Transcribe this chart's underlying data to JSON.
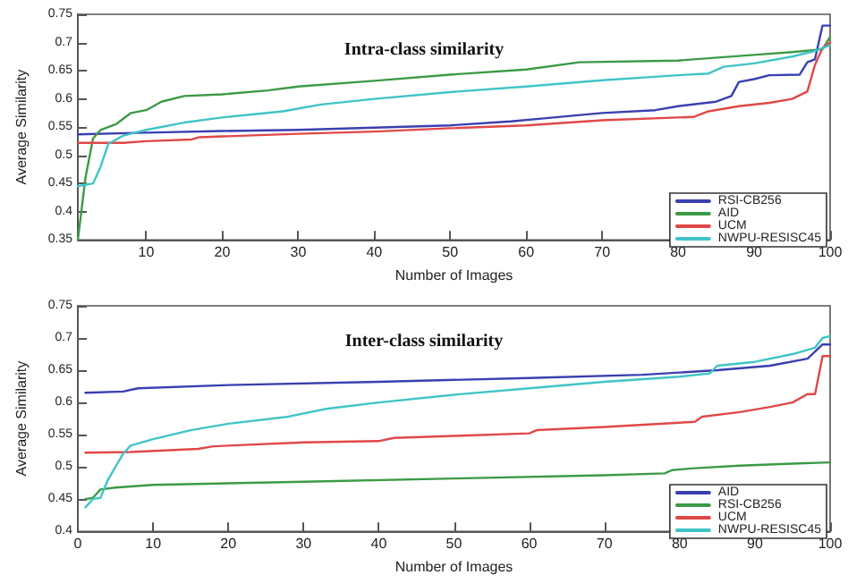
{
  "chart_data": [
    {
      "type": "line",
      "title": "Intra-class similarity",
      "xlabel": "Number of Images",
      "ylabel": "Average Similarity",
      "xlim": [
        1,
        100
      ],
      "xticks": [
        10,
        20,
        30,
        40,
        50,
        60,
        70,
        80,
        90,
        100
      ],
      "ylim": [
        0.35,
        0.75
      ],
      "yticks": [
        0.35,
        0.4,
        0.45,
        0.5,
        0.55,
        0.6,
        0.65,
        0.7,
        0.75
      ],
      "grid": false,
      "legend": "bottom right",
      "marker": "none",
      "line_style": "solid",
      "series": [
        {
          "name": "RSI-CB256",
          "color": "#3a3fb0",
          "x": [
            1,
            10,
            20,
            30,
            40,
            50,
            58,
            62,
            70,
            77,
            80,
            85,
            87,
            88,
            90,
            92,
            96,
            97,
            98,
            99,
            100
          ],
          "values": [
            0.537,
            0.54,
            0.543,
            0.545,
            0.549,
            0.553,
            0.56,
            0.565,
            0.575,
            0.58,
            0.587,
            0.595,
            0.605,
            0.63,
            0.635,
            0.642,
            0.643,
            0.665,
            0.67,
            0.73,
            0.73
          ]
        },
        {
          "name": "AID",
          "color": "#3c9a46",
          "x": [
            1,
            2,
            3,
            4,
            6,
            8,
            10,
            12,
            15,
            20,
            26,
            30,
            40,
            50,
            60,
            67,
            80,
            90,
            95,
            99,
            100
          ],
          "values": [
            0.35,
            0.46,
            0.53,
            0.545,
            0.555,
            0.575,
            0.58,
            0.595,
            0.605,
            0.608,
            0.615,
            0.622,
            0.632,
            0.643,
            0.652,
            0.665,
            0.668,
            0.678,
            0.683,
            0.688,
            0.71
          ]
        },
        {
          "name": "UCM",
          "color": "#e04848",
          "x": [
            1,
            7,
            10,
            16,
            17,
            30,
            40,
            50,
            60,
            70,
            82,
            84,
            88,
            92,
            95,
            97,
            98,
            99,
            100
          ],
          "values": [
            0.522,
            0.522,
            0.525,
            0.528,
            0.532,
            0.538,
            0.542,
            0.548,
            0.553,
            0.562,
            0.568,
            0.578,
            0.587,
            0.593,
            0.6,
            0.613,
            0.66,
            0.69,
            0.7
          ]
        },
        {
          "name": "NWPU-RESISC45",
          "color": "#40c4c8",
          "x": [
            1,
            3,
            4,
            5,
            7,
            10,
            15,
            20,
            28,
            33,
            40,
            50,
            60,
            70,
            80,
            84,
            86,
            90,
            95,
            98,
            100
          ],
          "values": [
            0.445,
            0.45,
            0.48,
            0.52,
            0.535,
            0.545,
            0.558,
            0.567,
            0.578,
            0.59,
            0.6,
            0.612,
            0.622,
            0.633,
            0.642,
            0.645,
            0.657,
            0.663,
            0.675,
            0.685,
            0.695
          ]
        }
      ]
    },
    {
      "type": "line",
      "title": "Inter-class similarity",
      "xlabel": "Number of Images",
      "ylabel": "Average Similarity",
      "xlim": [
        0,
        100
      ],
      "xticks": [
        0,
        10,
        20,
        30,
        40,
        50,
        60,
        70,
        80,
        90,
        100
      ],
      "ylim": [
        0.4,
        0.75
      ],
      "yticks": [
        0.4,
        0.45,
        0.5,
        0.55,
        0.6,
        0.65,
        0.7,
        0.75
      ],
      "grid": false,
      "legend": "bottom right",
      "marker": "none",
      "line_style": "solid",
      "series": [
        {
          "name": "AID",
          "color": "#3a3fb0",
          "x": [
            1,
            6,
            8,
            20,
            40,
            60,
            75,
            85,
            92,
            97,
            99,
            100
          ],
          "values": [
            0.615,
            0.617,
            0.622,
            0.627,
            0.632,
            0.638,
            0.643,
            0.65,
            0.657,
            0.668,
            0.69,
            0.69
          ]
        },
        {
          "name": "RSI-CB256",
          "color": "#3c9a46",
          "x": [
            1,
            2,
            3,
            5,
            10,
            30,
            50,
            70,
            78,
            79,
            82,
            88,
            95,
            100
          ],
          "values": [
            0.45,
            0.452,
            0.465,
            0.468,
            0.472,
            0.477,
            0.482,
            0.487,
            0.49,
            0.495,
            0.498,
            0.502,
            0.505,
            0.507
          ]
        },
        {
          "name": "UCM",
          "color": "#e04848",
          "x": [
            1,
            7,
            16,
            18,
            30,
            40,
            42,
            50,
            60,
            61,
            70,
            82,
            83,
            88,
            92,
            95,
            97,
            98,
            99,
            100
          ],
          "values": [
            0.522,
            0.523,
            0.528,
            0.532,
            0.538,
            0.54,
            0.545,
            0.548,
            0.552,
            0.557,
            0.562,
            0.57,
            0.578,
            0.585,
            0.593,
            0.6,
            0.613,
            0.613,
            0.672,
            0.672
          ]
        },
        {
          "name": "NWPU-RESISC45",
          "color": "#40c4c8",
          "x": [
            1,
            2,
            3,
            4,
            6,
            7,
            10,
            15,
            20,
            28,
            33,
            40,
            50,
            60,
            70,
            80,
            84,
            85,
            90,
            95,
            98,
            99,
            100
          ],
          "values": [
            0.437,
            0.45,
            0.452,
            0.48,
            0.52,
            0.533,
            0.543,
            0.557,
            0.567,
            0.578,
            0.59,
            0.6,
            0.612,
            0.622,
            0.632,
            0.64,
            0.645,
            0.657,
            0.663,
            0.675,
            0.685,
            0.7,
            0.703
          ]
        }
      ]
    }
  ]
}
